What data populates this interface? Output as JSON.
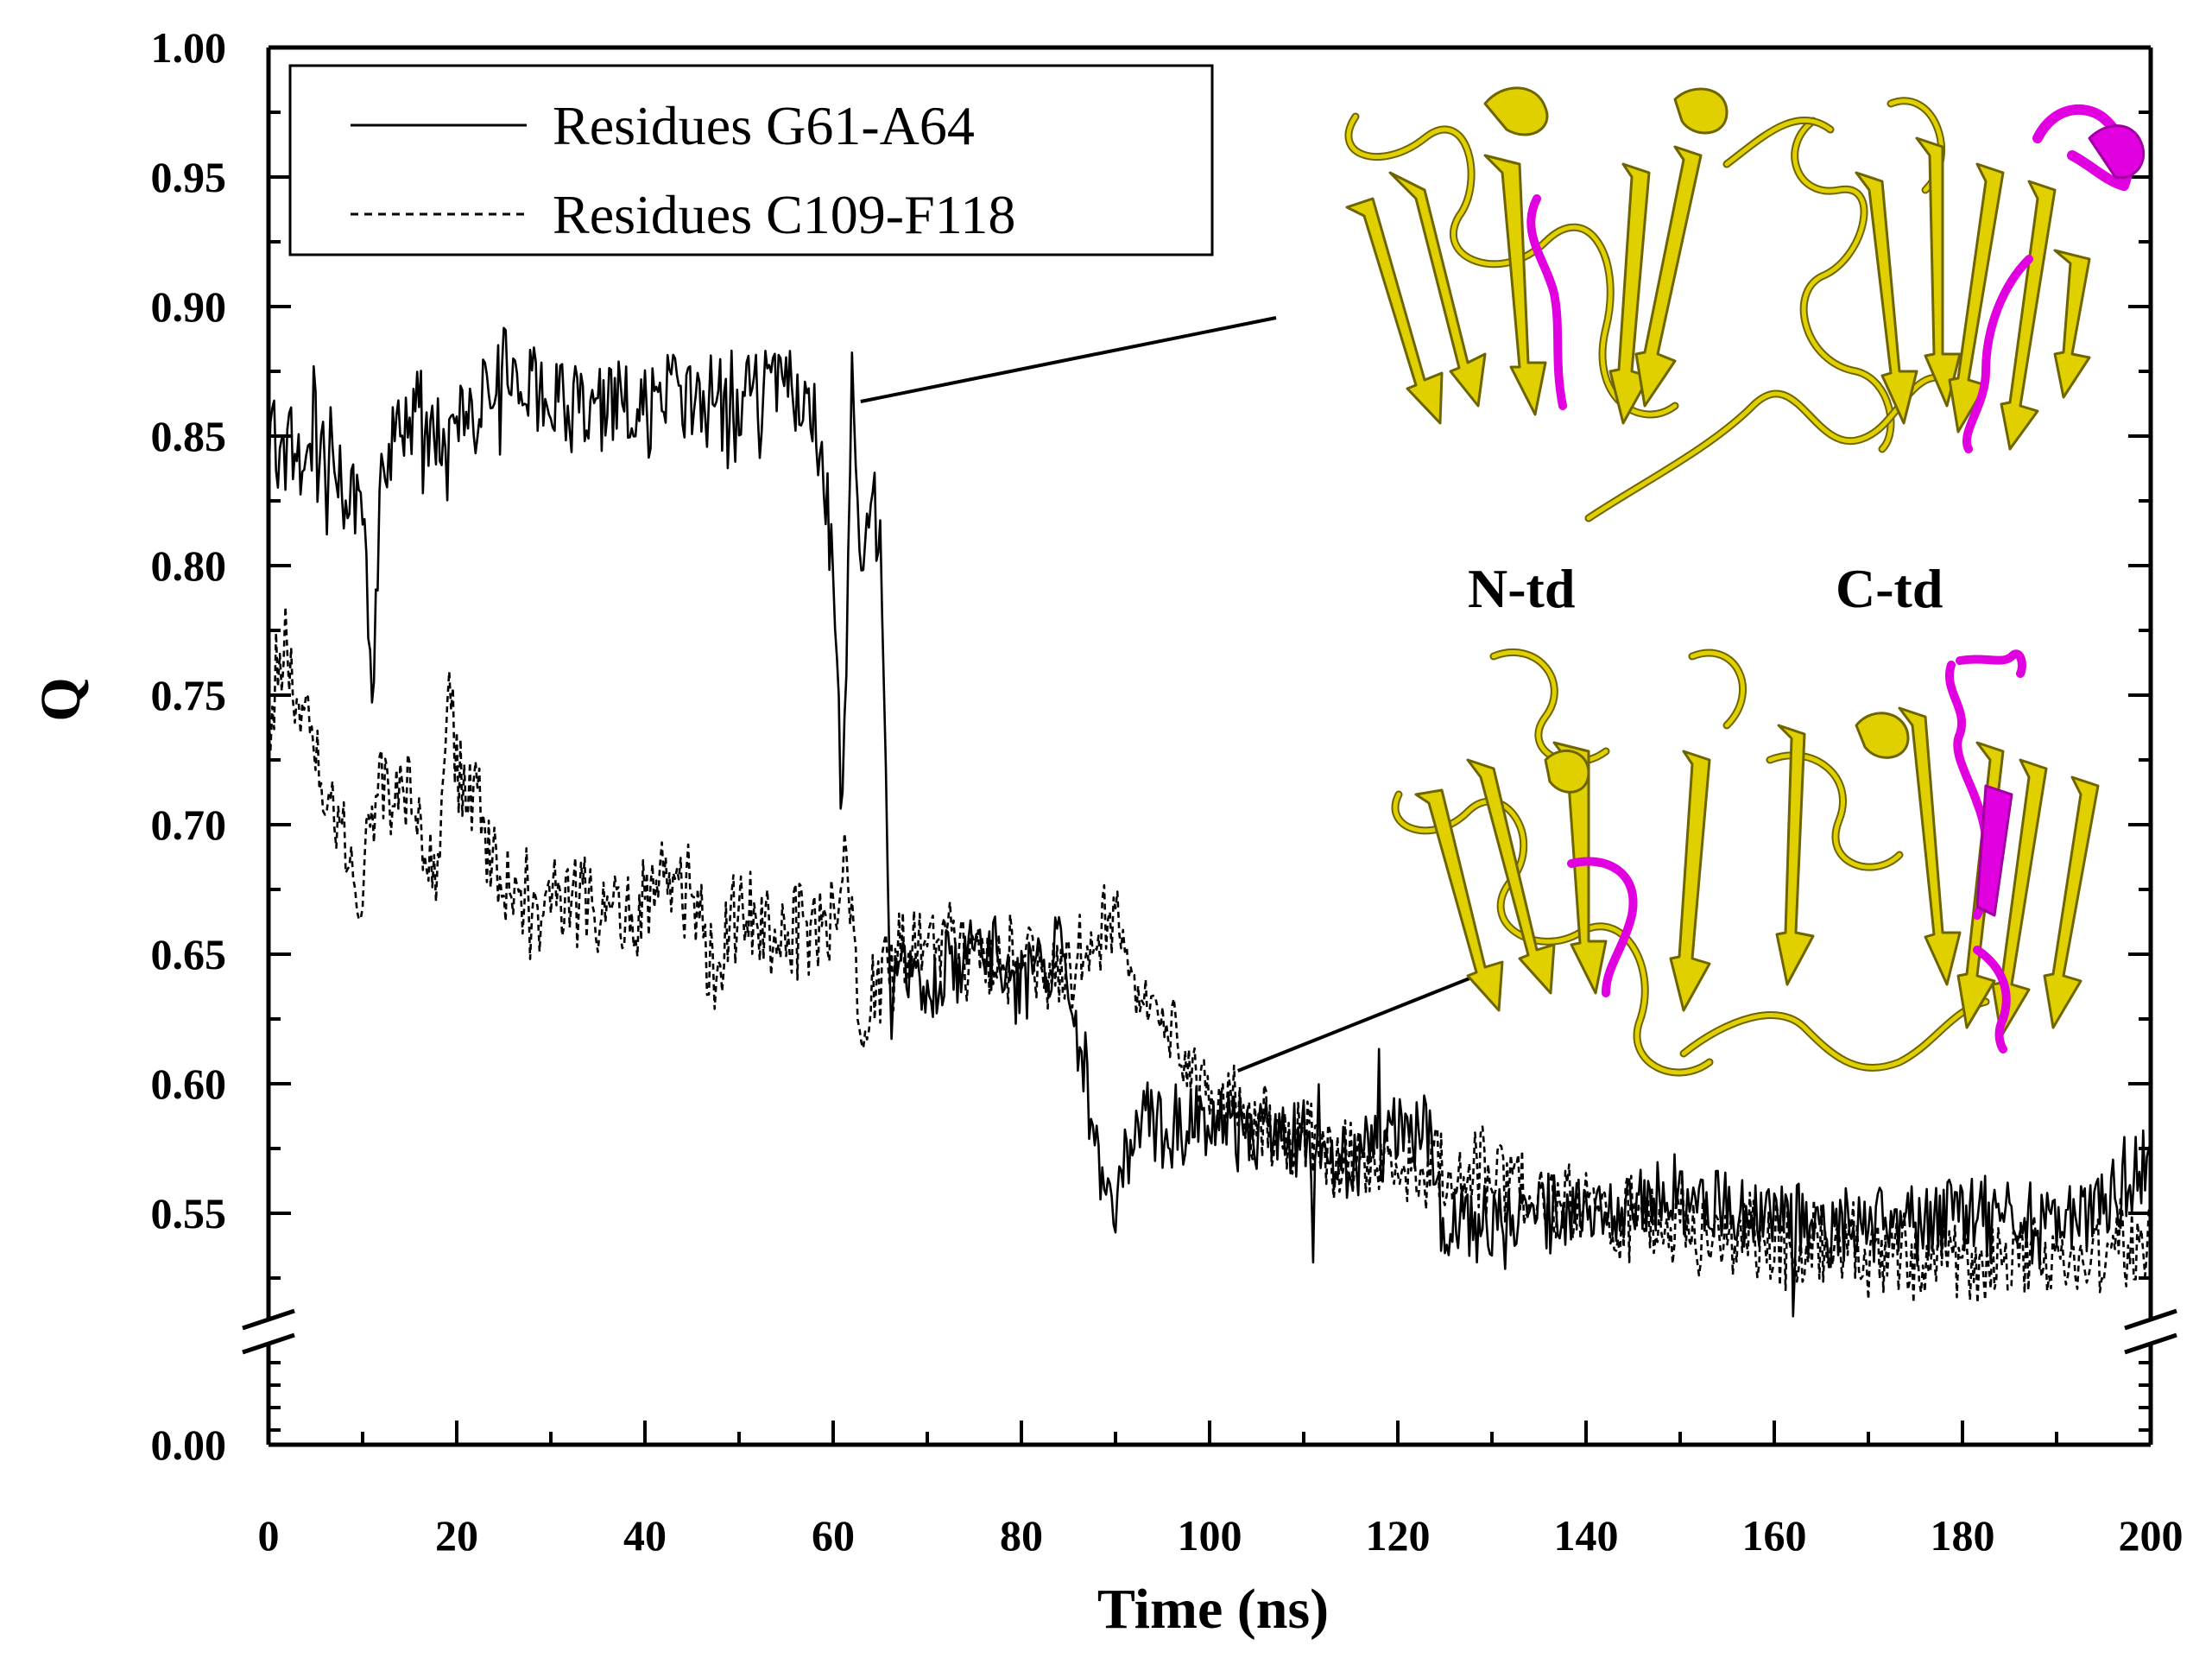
{
  "chart_data": {
    "type": "line",
    "xlabel": "Time (ns)",
    "ylabel": "Q",
    "xlim": [
      0,
      200
    ],
    "ylim_upper": [
      0.5,
      1.0
    ],
    "ylim_lower": [
      0.0,
      0.0
    ],
    "axis_break": "between 0.00 and 0.50",
    "x_ticks": [
      "0",
      "20",
      "40",
      "60",
      "80",
      "100",
      "120",
      "140",
      "160",
      "180",
      "200"
    ],
    "y_ticks": [
      "1.00",
      "0.95",
      "0.90",
      "0.85",
      "0.80",
      "0.75",
      "0.70",
      "0.65",
      "0.60",
      "0.55",
      "0.00"
    ],
    "legend_position": "top-left",
    "series": [
      {
        "name": "Residues G61-A64",
        "style": "solid",
        "keypoints": [
          [
            0,
            0.85
          ],
          [
            5,
            0.845
          ],
          [
            10,
            0.83
          ],
          [
            11,
            0.755
          ],
          [
            12,
            0.83
          ],
          [
            15,
            0.86
          ],
          [
            20,
            0.845
          ],
          [
            25,
            0.875
          ],
          [
            30,
            0.865
          ],
          [
            35,
            0.86
          ],
          [
            40,
            0.86
          ],
          [
            45,
            0.865
          ],
          [
            50,
            0.86
          ],
          [
            55,
            0.87
          ],
          [
            58,
            0.86
          ],
          [
            60,
            0.8
          ],
          [
            61,
            0.7
          ],
          [
            62,
            0.865
          ],
          [
            63,
            0.8
          ],
          [
            64,
            0.83
          ],
          [
            65,
            0.81
          ],
          [
            66,
            0.65
          ],
          [
            70,
            0.64
          ],
          [
            75,
            0.65
          ],
          [
            80,
            0.64
          ],
          [
            84,
            0.65
          ],
          [
            86,
            0.62
          ],
          [
            88,
            0.57
          ],
          [
            90,
            0.55
          ],
          [
            92,
            0.585
          ],
          [
            95,
            0.585
          ],
          [
            100,
            0.585
          ],
          [
            105,
            0.58
          ],
          [
            110,
            0.575
          ],
          [
            115,
            0.565
          ],
          [
            120,
            0.585
          ],
          [
            123,
            0.585
          ],
          [
            125,
            0.545
          ],
          [
            130,
            0.545
          ],
          [
            140,
            0.55
          ],
          [
            150,
            0.555
          ],
          [
            160,
            0.545
          ],
          [
            170,
            0.545
          ],
          [
            180,
            0.55
          ],
          [
            190,
            0.545
          ],
          [
            200,
            0.565
          ]
        ]
      },
      {
        "name": "Residues C109-F118",
        "style": "dashed",
        "keypoints": [
          [
            0,
            0.745
          ],
          [
            2,
            0.77
          ],
          [
            4,
            0.735
          ],
          [
            8,
            0.69
          ],
          [
            10,
            0.67
          ],
          [
            12,
            0.725
          ],
          [
            15,
            0.705
          ],
          [
            18,
            0.685
          ],
          [
            19,
            0.76
          ],
          [
            20,
            0.72
          ],
          [
            22,
            0.715
          ],
          [
            25,
            0.675
          ],
          [
            30,
            0.665
          ],
          [
            32,
            0.675
          ],
          [
            35,
            0.665
          ],
          [
            40,
            0.67
          ],
          [
            45,
            0.68
          ],
          [
            47,
            0.645
          ],
          [
            50,
            0.665
          ],
          [
            55,
            0.655
          ],
          [
            60,
            0.66
          ],
          [
            61,
            0.69
          ],
          [
            62,
            0.66
          ],
          [
            63,
            0.62
          ],
          [
            65,
            0.64
          ],
          [
            70,
            0.66
          ],
          [
            75,
            0.65
          ],
          [
            80,
            0.645
          ],
          [
            85,
            0.645
          ],
          [
            88,
            0.655
          ],
          [
            90,
            0.665
          ],
          [
            92,
            0.635
          ],
          [
            95,
            0.625
          ],
          [
            100,
            0.595
          ],
          [
            105,
            0.585
          ],
          [
            110,
            0.575
          ],
          [
            115,
            0.57
          ],
          [
            120,
            0.565
          ],
          [
            125,
            0.565
          ],
          [
            130,
            0.565
          ],
          [
            140,
            0.55
          ],
          [
            150,
            0.545
          ],
          [
            160,
            0.54
          ],
          [
            170,
            0.535
          ],
          [
            180,
            0.53
          ],
          [
            190,
            0.53
          ],
          [
            200,
            0.545
          ]
        ]
      }
    ],
    "annotations": {
      "label_n": "N-td",
      "label_c": "C-td",
      "pointer_1_from": [
        62,
        0.865
      ],
      "pointer_2_from": [
        103,
        0.61
      ]
    }
  },
  "colors": {
    "line": "#000000",
    "protein": "#e0d000",
    "protein_edge": "#6e6400",
    "highlight": "#e000e0"
  }
}
